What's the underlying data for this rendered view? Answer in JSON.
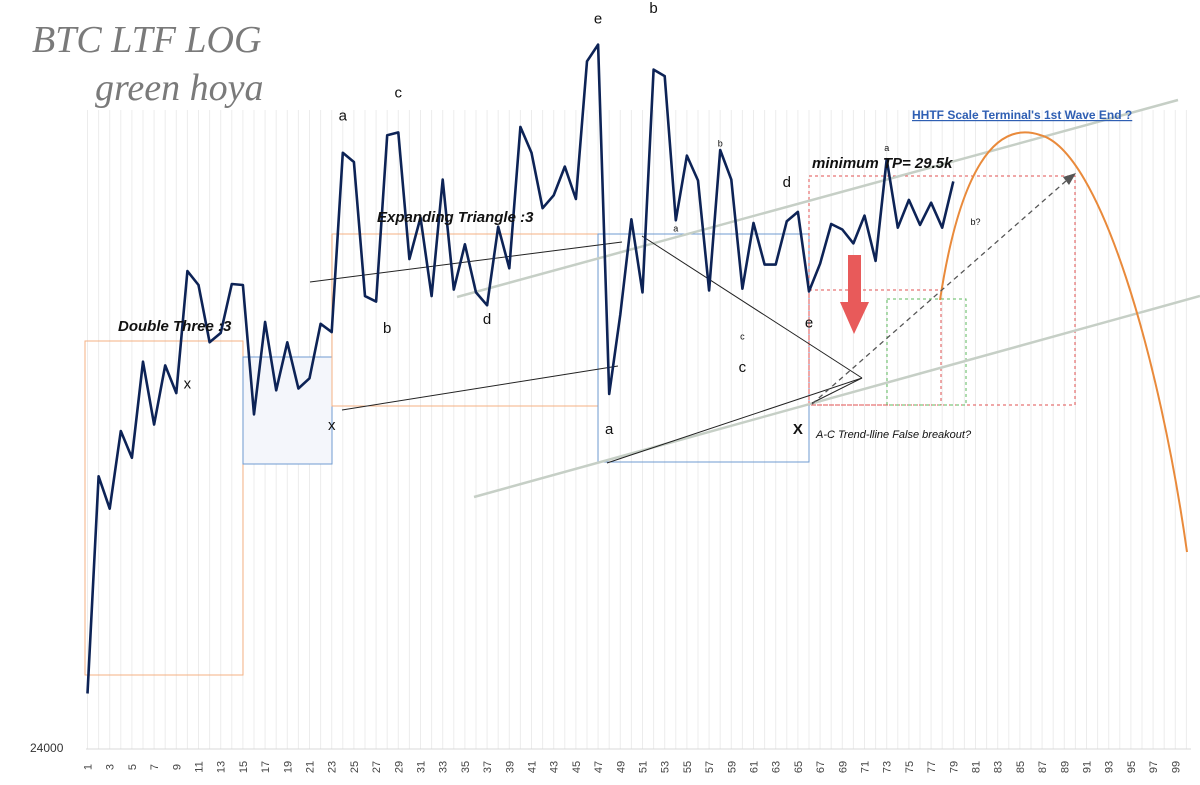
{
  "title": {
    "line1": "BTC LTF LOG",
    "line2": "green hoya"
  },
  "chart_data": {
    "type": "line",
    "series": [
      {
        "name": "BTC",
        "x": [
          1,
          2,
          3,
          4,
          5,
          6,
          7,
          8,
          9,
          10,
          11,
          12,
          13,
          14,
          15,
          16,
          17,
          18,
          19,
          20,
          21,
          22,
          23,
          24,
          25,
          26,
          27,
          28,
          29,
          30,
          31,
          32,
          33,
          34,
          35,
          36,
          37,
          38,
          39,
          40,
          41,
          42,
          43,
          44,
          45,
          46,
          47,
          48,
          49,
          50,
          51,
          52,
          53,
          54,
          55,
          56,
          57,
          58,
          59,
          60,
          61,
          62,
          63,
          64,
          65,
          66,
          67,
          68,
          69,
          70,
          71,
          72,
          73,
          74,
          75,
          76,
          77,
          78,
          79
        ],
        "values": [
          24600,
          26950,
          26600,
          27440,
          27150,
          28190,
          27510,
          28150,
          27850,
          29170,
          29020,
          28400,
          28500,
          29030,
          29020,
          27620,
          28620,
          27880,
          28400,
          27900,
          28010,
          28600,
          28510,
          30450,
          30350,
          28900,
          28840,
          30640,
          30670,
          29300,
          29750,
          28900,
          30160,
          28970,
          29460,
          28940,
          28800,
          29650,
          29200,
          30730,
          30450,
          29850,
          29990,
          30300,
          29950,
          31440,
          31620,
          27840,
          28700,
          29730,
          28940,
          31350,
          31280,
          29720,
          30420,
          30150,
          28960,
          30480,
          30160,
          28980,
          29690,
          29240,
          29240,
          29710,
          29810,
          28950,
          29250,
          29680,
          29620,
          29470,
          29770,
          29280,
          30380,
          29640,
          29940,
          29670,
          29910,
          29640,
          30140
        ]
      }
    ],
    "xlabel": "",
    "ylabel": "",
    "y_tick_label": "24000",
    "ylim": [
      24000,
      32000
    ],
    "xlim": [
      1,
      100
    ],
    "x_ticks": [
      "1",
      "3",
      "5",
      "7",
      "9",
      "11",
      "13",
      "15",
      "17",
      "19",
      "21",
      "23",
      "25",
      "27",
      "29",
      "31",
      "33",
      "35",
      "37",
      "39",
      "41",
      "43",
      "45",
      "47",
      "49",
      "51",
      "53",
      "55",
      "57",
      "59",
      "61",
      "63",
      "65",
      "67",
      "69",
      "71",
      "73",
      "75",
      "77",
      "79",
      "81",
      "83",
      "85",
      "87",
      "89",
      "91",
      "93",
      "95",
      "97",
      "99"
    ],
    "annotations": {
      "double_three": "Double Three :3",
      "expanding_triangle": "Expanding Triangle :3",
      "min_tp": "minimum TP= 29.5k",
      "hhtf": "HHTF Scale Terminal's 1st Wave End ?",
      "false_breakout": "A-C Trend-lline False breakout?",
      "waves": [
        {
          "t": "x",
          "x": 10,
          "y": 27900
        },
        {
          "t": "x",
          "x": 23,
          "y": 27450
        },
        {
          "t": "a",
          "x": 24,
          "y": 30800
        },
        {
          "t": "c",
          "x": 29,
          "y": 31050
        },
        {
          "t": "b",
          "x": 28,
          "y": 28500
        },
        {
          "t": "d",
          "x": 37,
          "y": 28600
        },
        {
          "t": "e",
          "x": 47,
          "y": 31850
        },
        {
          "t": "b",
          "x": 52,
          "y": 31960
        },
        {
          "t": "d",
          "x": 64,
          "y": 30080
        },
        {
          "t": "e",
          "x": 66,
          "y": 28560
        },
        {
          "t": "c",
          "x": 60,
          "y": 28080
        },
        {
          "t": "a",
          "x": 48,
          "y": 27410
        },
        {
          "t": "X",
          "x": 65,
          "y": 27410
        }
      ],
      "small_waves": [
        {
          "t": "a",
          "x": 54,
          "y": 29600
        },
        {
          "t": "b",
          "x": 58,
          "y": 30520
        },
        {
          "t": "c",
          "x": 60,
          "y": 28430
        },
        {
          "t": "a",
          "x": 73,
          "y": 30470
        },
        {
          "t": "b?",
          "x": 81,
          "y": 29670
        }
      ]
    }
  },
  "colors": {
    "line": "#0d2356",
    "orange_box": "#f4b183",
    "blue_box": "#6f9bd1",
    "red_box": "#e05252",
    "green_box": "#5cb85c",
    "channel": "#c6cfc6",
    "arc": "#e98a3b",
    "arrow": "#e85a5a",
    "link": "#2f5fb3"
  }
}
